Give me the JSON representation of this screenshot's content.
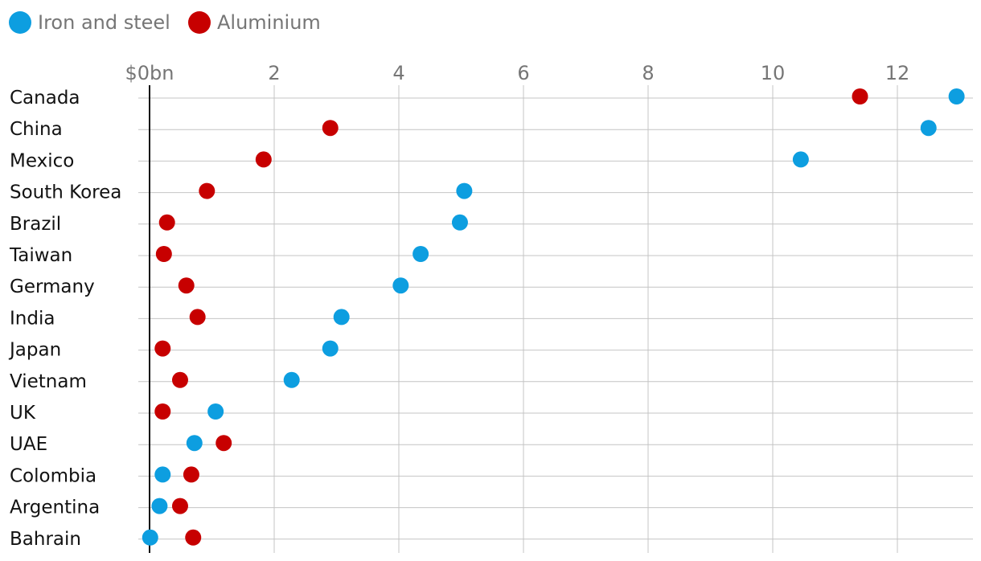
{
  "chart_data": {
    "type": "scatter",
    "title": "",
    "xlabel": "",
    "ylabel": "",
    "xlim": [
      0,
      13
    ],
    "x_ticks": [
      0,
      2,
      4,
      6,
      8,
      10,
      12
    ],
    "x_tick_labels": [
      "$0bn",
      "2",
      "4",
      "6",
      "8",
      "10",
      "12"
    ],
    "grid": true,
    "legend_position": "top-left",
    "categories": [
      "Canada",
      "China",
      "Mexico",
      "South Korea",
      "Brazil",
      "Taiwan",
      "Germany",
      "India",
      "Japan",
      "Vietnam",
      "UK",
      "UAE",
      "Colombia",
      "Argentina",
      "Bahrain"
    ],
    "series": [
      {
        "name": "Iron and steel",
        "color": "#0d9ee0",
        "values": [
          12.95,
          12.5,
          10.45,
          5.05,
          4.98,
          4.35,
          4.03,
          3.08,
          2.9,
          2.28,
          1.06,
          0.72,
          0.21,
          0.16,
          0.01
        ]
      },
      {
        "name": "Aluminium",
        "color": "#c70000",
        "values": [
          11.4,
          2.9,
          1.83,
          0.92,
          0.28,
          0.23,
          0.59,
          0.77,
          0.21,
          0.49,
          0.21,
          1.19,
          0.67,
          0.49,
          0.7
        ]
      }
    ]
  }
}
